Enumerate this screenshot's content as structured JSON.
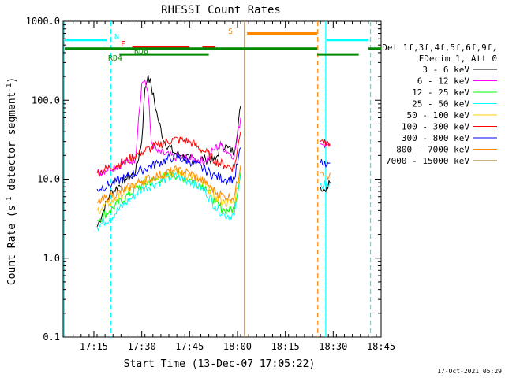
{
  "chart_data": {
    "type": "line",
    "title": "RHESSI Count Rates",
    "xlabel": "Start Time (13-Dec-07 17:05:22)",
    "ylabel_main": "Count Rate (s",
    "ylabel_sup1": "-1",
    "ylabel_mid": " detector segment",
    "ylabel_sup2": "-1",
    "ylabel_end": ")",
    "y_scale": "log",
    "xlim": [
      "17:05:22",
      "18:45:00"
    ],
    "ylim": [
      0.1,
      1000
    ],
    "x_ticks": [
      "17:15",
      "17:30",
      "17:45",
      "18:00",
      "18:15",
      "18:30",
      "18:45"
    ],
    "y_ticks": [
      "0.1",
      "1.0",
      "10.0",
      "100.0",
      "1000.0"
    ],
    "legend_header": [
      "Det 1f,3f,4f,5f,6f,9f,",
      "FDecim 1, Att 0"
    ],
    "legend_position": "right",
    "series": [
      {
        "name": "3 - 6 keV",
        "color": "#000000",
        "points": [
          [
            "17:16",
            2.5
          ],
          [
            "17:20",
            6.5
          ],
          [
            "17:25",
            10
          ],
          [
            "17:28",
            12
          ],
          [
            "17:30",
            30
          ],
          [
            "17:31",
            140
          ],
          [
            "17:32",
            210
          ],
          [
            "17:33",
            150
          ],
          [
            "17:35",
            60
          ],
          [
            "17:37",
            30
          ],
          [
            "17:40",
            22
          ],
          [
            "17:45",
            18
          ],
          [
            "17:50",
            18
          ],
          [
            "17:53",
            17
          ],
          [
            "17:55",
            28
          ],
          [
            "17:57",
            25
          ],
          [
            "17:59",
            22
          ],
          [
            "18:01",
            85
          ]
        ]
      },
      {
        "name": "6 - 12 keV",
        "color": "#ff00ff",
        "points": [
          [
            "17:16",
            12
          ],
          [
            "17:20",
            14
          ],
          [
            "17:25",
            16
          ],
          [
            "17:28",
            18
          ],
          [
            "17:29",
            60
          ],
          [
            "17:30",
            160
          ],
          [
            "17:31",
            180
          ],
          [
            "17:32",
            120
          ],
          [
            "17:33",
            30
          ],
          [
            "17:35",
            22
          ],
          [
            "17:40",
            19
          ],
          [
            "17:45",
            18
          ],
          [
            "17:50",
            17
          ],
          [
            "17:53",
            25
          ],
          [
            "17:55",
            27
          ],
          [
            "17:57",
            22
          ],
          [
            "17:59",
            20
          ],
          [
            "18:01",
            60
          ]
        ]
      },
      {
        "name": "12 - 25 keV",
        "color": "#00ff00",
        "points": [
          [
            "17:16",
            3
          ],
          [
            "17:20",
            4
          ],
          [
            "17:25",
            6
          ],
          [
            "17:30",
            8.5
          ],
          [
            "17:35",
            10
          ],
          [
            "17:40",
            11.5
          ],
          [
            "17:45",
            10
          ],
          [
            "17:50",
            8
          ],
          [
            "17:53",
            5
          ],
          [
            "17:56",
            4
          ],
          [
            "17:59",
            4.2
          ],
          [
            "18:01",
            12
          ]
        ]
      },
      {
        "name": "25 - 50 keV",
        "color": "#00ffff",
        "points": [
          [
            "17:16",
            2.5
          ],
          [
            "17:20",
            3.2
          ],
          [
            "17:25",
            5
          ],
          [
            "17:30",
            7.5
          ],
          [
            "17:35",
            9
          ],
          [
            "17:40",
            11
          ],
          [
            "17:45",
            9.5
          ],
          [
            "17:50",
            7
          ],
          [
            "17:53",
            4.5
          ],
          [
            "17:56",
            3.5
          ],
          [
            "17:59",
            3.5
          ],
          [
            "18:01",
            11
          ]
        ]
      },
      {
        "name": "50 - 100 keV",
        "color": "#ffcc00",
        "points": [
          [
            "17:16",
            4
          ],
          [
            "17:20",
            5
          ],
          [
            "17:25",
            7
          ],
          [
            "17:30",
            9
          ],
          [
            "17:35",
            11
          ],
          [
            "17:40",
            12.5
          ],
          [
            "17:45",
            11
          ],
          [
            "17:50",
            8.5
          ],
          [
            "17:53",
            6
          ],
          [
            "17:56",
            5
          ],
          [
            "17:59",
            5
          ],
          [
            "18:01",
            14
          ]
        ]
      },
      {
        "name": "100 - 300 keV",
        "color": "#ff0000",
        "points": [
          [
            "17:16",
            12
          ],
          [
            "17:20",
            14
          ],
          [
            "17:25",
            17
          ],
          [
            "17:30",
            22
          ],
          [
            "17:35",
            27
          ],
          [
            "17:40",
            32
          ],
          [
            "17:45",
            30
          ],
          [
            "17:50",
            22
          ],
          [
            "17:53",
            17
          ],
          [
            "17:56",
            15
          ],
          [
            "17:59",
            14
          ],
          [
            "18:01",
            40
          ]
        ]
      },
      {
        "name": "300 - 800 keV",
        "color": "#0000ff",
        "points": [
          [
            "17:16",
            7.5
          ],
          [
            "17:20",
            8.5
          ],
          [
            "17:25",
            10.5
          ],
          [
            "17:30",
            13
          ],
          [
            "17:35",
            16
          ],
          [
            "17:40",
            19
          ],
          [
            "17:45",
            17
          ],
          [
            "17:50",
            13
          ],
          [
            "17:53",
            11
          ],
          [
            "17:56",
            10
          ],
          [
            "17:59",
            10
          ],
          [
            "18:01",
            25
          ]
        ]
      },
      {
        "name": "800 - 7000 keV",
        "color": "#ff8800",
        "points": [
          [
            "17:16",
            5
          ],
          [
            "17:20",
            6
          ],
          [
            "17:25",
            7.5
          ],
          [
            "17:30",
            9.5
          ],
          [
            "17:35",
            11
          ],
          [
            "17:40",
            13
          ],
          [
            "17:45",
            12
          ],
          [
            "17:50",
            9
          ],
          [
            "17:53",
            7
          ],
          [
            "17:56",
            6
          ],
          [
            "17:59",
            6
          ],
          [
            "18:01",
            15
          ]
        ]
      },
      {
        "name": "7000 - 15000 keV",
        "color": "#886600",
        "points": []
      }
    ],
    "segment2": {
      "series": [
        {
          "color": "#000000",
          "points": [
            [
              "18:26",
              8
            ],
            [
              "18:27",
              7.5
            ],
            [
              "18:28",
              8
            ],
            [
              "18:29",
              9
            ]
          ]
        },
        {
          "color": "#ff00ff",
          "points": [
            [
              "18:26",
              28
            ],
            [
              "18:27",
              27
            ],
            [
              "18:28",
              27
            ],
            [
              "18:29",
              26
            ]
          ]
        },
        {
          "color": "#ff0000",
          "points": [
            [
              "18:26",
              30
            ],
            [
              "18:27",
              28
            ],
            [
              "18:28",
              29
            ],
            [
              "18:29",
              28
            ]
          ]
        },
        {
          "color": "#0000ff",
          "points": [
            [
              "18:26",
              16
            ],
            [
              "18:27",
              15
            ],
            [
              "18:28",
              15
            ],
            [
              "18:29",
              16
            ]
          ]
        },
        {
          "color": "#ff8800",
          "points": [
            [
              "18:26",
              12
            ],
            [
              "18:27",
              11
            ],
            [
              "18:28",
              11
            ],
            [
              "18:29",
              12
            ]
          ]
        },
        {
          "color": "#00ffff",
          "points": [
            [
              "18:26",
              9
            ],
            [
              "18:27",
              8.5
            ],
            [
              "18:28",
              9
            ],
            [
              "18:29",
              9
            ]
          ]
        }
      ]
    },
    "vertical_markers": [
      {
        "time": "17:05:40",
        "color": "#00ffff",
        "style": "solid"
      },
      {
        "time": "17:20:20",
        "color": "#00ffff",
        "style": "dashed"
      },
      {
        "time": "18:02:10",
        "color": "#ff8800",
        "style": "solid"
      },
      {
        "time": "18:25:10",
        "color": "#ff8800",
        "style": "dashed"
      },
      {
        "time": "18:27:40",
        "color": "#00ffff",
        "style": "solid"
      },
      {
        "time": "18:41:40",
        "color": "#00ffff",
        "style": "dashed"
      }
    ],
    "flag_bars": [
      {
        "label": "N",
        "color": "#00ffff",
        "y": 580,
        "segments": [
          [
            "17:06",
            "17:19"
          ],
          [
            "18:28",
            "18:41"
          ]
        ]
      },
      {
        "label": "F",
        "color": "#ff0000",
        "y": 470,
        "segments": [
          [
            "17:27",
            "17:45"
          ],
          [
            "17:49",
            "17:53"
          ]
        ]
      },
      {
        "label": "S",
        "color": "#ff8800",
        "y": 700,
        "segments": [
          [
            "18:03",
            "18:25"
          ]
        ]
      },
      {
        "label": "RD0",
        "color": "#008800",
        "y": 450,
        "segments": [
          [
            "17:06",
            "18:25"
          ],
          [
            "18:41",
            "18:45"
          ]
        ]
      },
      {
        "label": "RD4",
        "color": "#008800",
        "y": 380,
        "segments": [
          [
            "17:23",
            "17:51"
          ],
          [
            "18:25",
            "18:38"
          ]
        ]
      }
    ]
  },
  "footer": {
    "timestamp": "17-Oct-2021 05:29"
  }
}
